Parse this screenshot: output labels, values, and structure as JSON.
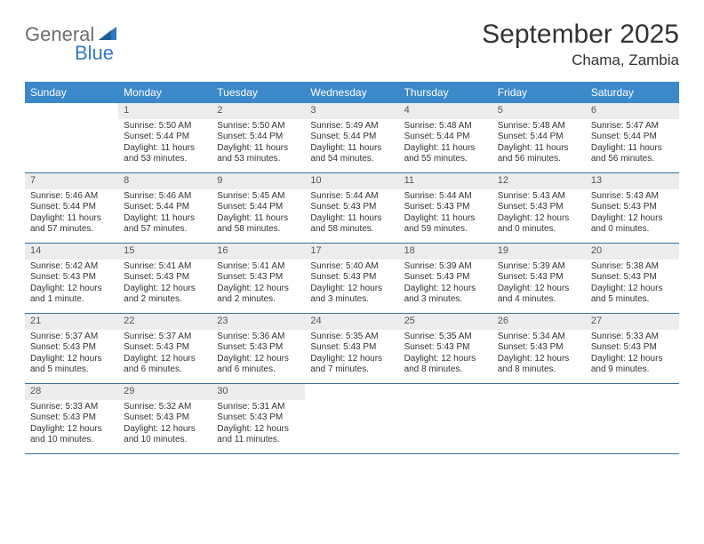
{
  "logo": {
    "text1": "General",
    "text2": "Blue",
    "color_gray": "#6e6e6e",
    "color_blue": "#2f7bbf"
  },
  "title": "September 2025",
  "location": "Chama, Zambia",
  "header_bg": "#3b89c9",
  "week_border": "#3b6fa0",
  "daynum_bg": "#ececec",
  "day_names": [
    "Sunday",
    "Monday",
    "Tuesday",
    "Wednesday",
    "Thursday",
    "Friday",
    "Saturday"
  ],
  "weeks": [
    [
      {
        "n": "",
        "sr": "",
        "ss": "",
        "dl": ""
      },
      {
        "n": "1",
        "sr": "Sunrise: 5:50 AM",
        "ss": "Sunset: 5:44 PM",
        "dl": "Daylight: 11 hours and 53 minutes."
      },
      {
        "n": "2",
        "sr": "Sunrise: 5:50 AM",
        "ss": "Sunset: 5:44 PM",
        "dl": "Daylight: 11 hours and 53 minutes."
      },
      {
        "n": "3",
        "sr": "Sunrise: 5:49 AM",
        "ss": "Sunset: 5:44 PM",
        "dl": "Daylight: 11 hours and 54 minutes."
      },
      {
        "n": "4",
        "sr": "Sunrise: 5:48 AM",
        "ss": "Sunset: 5:44 PM",
        "dl": "Daylight: 11 hours and 55 minutes."
      },
      {
        "n": "5",
        "sr": "Sunrise: 5:48 AM",
        "ss": "Sunset: 5:44 PM",
        "dl": "Daylight: 11 hours and 56 minutes."
      },
      {
        "n": "6",
        "sr": "Sunrise: 5:47 AM",
        "ss": "Sunset: 5:44 PM",
        "dl": "Daylight: 11 hours and 56 minutes."
      }
    ],
    [
      {
        "n": "7",
        "sr": "Sunrise: 5:46 AM",
        "ss": "Sunset: 5:44 PM",
        "dl": "Daylight: 11 hours and 57 minutes."
      },
      {
        "n": "8",
        "sr": "Sunrise: 5:46 AM",
        "ss": "Sunset: 5:44 PM",
        "dl": "Daylight: 11 hours and 57 minutes."
      },
      {
        "n": "9",
        "sr": "Sunrise: 5:45 AM",
        "ss": "Sunset: 5:44 PM",
        "dl": "Daylight: 11 hours and 58 minutes."
      },
      {
        "n": "10",
        "sr": "Sunrise: 5:44 AM",
        "ss": "Sunset: 5:43 PM",
        "dl": "Daylight: 11 hours and 58 minutes."
      },
      {
        "n": "11",
        "sr": "Sunrise: 5:44 AM",
        "ss": "Sunset: 5:43 PM",
        "dl": "Daylight: 11 hours and 59 minutes."
      },
      {
        "n": "12",
        "sr": "Sunrise: 5:43 AM",
        "ss": "Sunset: 5:43 PM",
        "dl": "Daylight: 12 hours and 0 minutes."
      },
      {
        "n": "13",
        "sr": "Sunrise: 5:43 AM",
        "ss": "Sunset: 5:43 PM",
        "dl": "Daylight: 12 hours and 0 minutes."
      }
    ],
    [
      {
        "n": "14",
        "sr": "Sunrise: 5:42 AM",
        "ss": "Sunset: 5:43 PM",
        "dl": "Daylight: 12 hours and 1 minute."
      },
      {
        "n": "15",
        "sr": "Sunrise: 5:41 AM",
        "ss": "Sunset: 5:43 PM",
        "dl": "Daylight: 12 hours and 2 minutes."
      },
      {
        "n": "16",
        "sr": "Sunrise: 5:41 AM",
        "ss": "Sunset: 5:43 PM",
        "dl": "Daylight: 12 hours and 2 minutes."
      },
      {
        "n": "17",
        "sr": "Sunrise: 5:40 AM",
        "ss": "Sunset: 5:43 PM",
        "dl": "Daylight: 12 hours and 3 minutes."
      },
      {
        "n": "18",
        "sr": "Sunrise: 5:39 AM",
        "ss": "Sunset: 5:43 PM",
        "dl": "Daylight: 12 hours and 3 minutes."
      },
      {
        "n": "19",
        "sr": "Sunrise: 5:39 AM",
        "ss": "Sunset: 5:43 PM",
        "dl": "Daylight: 12 hours and 4 minutes."
      },
      {
        "n": "20",
        "sr": "Sunrise: 5:38 AM",
        "ss": "Sunset: 5:43 PM",
        "dl": "Daylight: 12 hours and 5 minutes."
      }
    ],
    [
      {
        "n": "21",
        "sr": "Sunrise: 5:37 AM",
        "ss": "Sunset: 5:43 PM",
        "dl": "Daylight: 12 hours and 5 minutes."
      },
      {
        "n": "22",
        "sr": "Sunrise: 5:37 AM",
        "ss": "Sunset: 5:43 PM",
        "dl": "Daylight: 12 hours and 6 minutes."
      },
      {
        "n": "23",
        "sr": "Sunrise: 5:36 AM",
        "ss": "Sunset: 5:43 PM",
        "dl": "Daylight: 12 hours and 6 minutes."
      },
      {
        "n": "24",
        "sr": "Sunrise: 5:35 AM",
        "ss": "Sunset: 5:43 PM",
        "dl": "Daylight: 12 hours and 7 minutes."
      },
      {
        "n": "25",
        "sr": "Sunrise: 5:35 AM",
        "ss": "Sunset: 5:43 PM",
        "dl": "Daylight: 12 hours and 8 minutes."
      },
      {
        "n": "26",
        "sr": "Sunrise: 5:34 AM",
        "ss": "Sunset: 5:43 PM",
        "dl": "Daylight: 12 hours and 8 minutes."
      },
      {
        "n": "27",
        "sr": "Sunrise: 5:33 AM",
        "ss": "Sunset: 5:43 PM",
        "dl": "Daylight: 12 hours and 9 minutes."
      }
    ],
    [
      {
        "n": "28",
        "sr": "Sunrise: 5:33 AM",
        "ss": "Sunset: 5:43 PM",
        "dl": "Daylight: 12 hours and 10 minutes."
      },
      {
        "n": "29",
        "sr": "Sunrise: 5:32 AM",
        "ss": "Sunset: 5:43 PM",
        "dl": "Daylight: 12 hours and 10 minutes."
      },
      {
        "n": "30",
        "sr": "Sunrise: 5:31 AM",
        "ss": "Sunset: 5:43 PM",
        "dl": "Daylight: 12 hours and 11 minutes."
      },
      {
        "n": "",
        "sr": "",
        "ss": "",
        "dl": ""
      },
      {
        "n": "",
        "sr": "",
        "ss": "",
        "dl": ""
      },
      {
        "n": "",
        "sr": "",
        "ss": "",
        "dl": ""
      },
      {
        "n": "",
        "sr": "",
        "ss": "",
        "dl": ""
      }
    ]
  ]
}
